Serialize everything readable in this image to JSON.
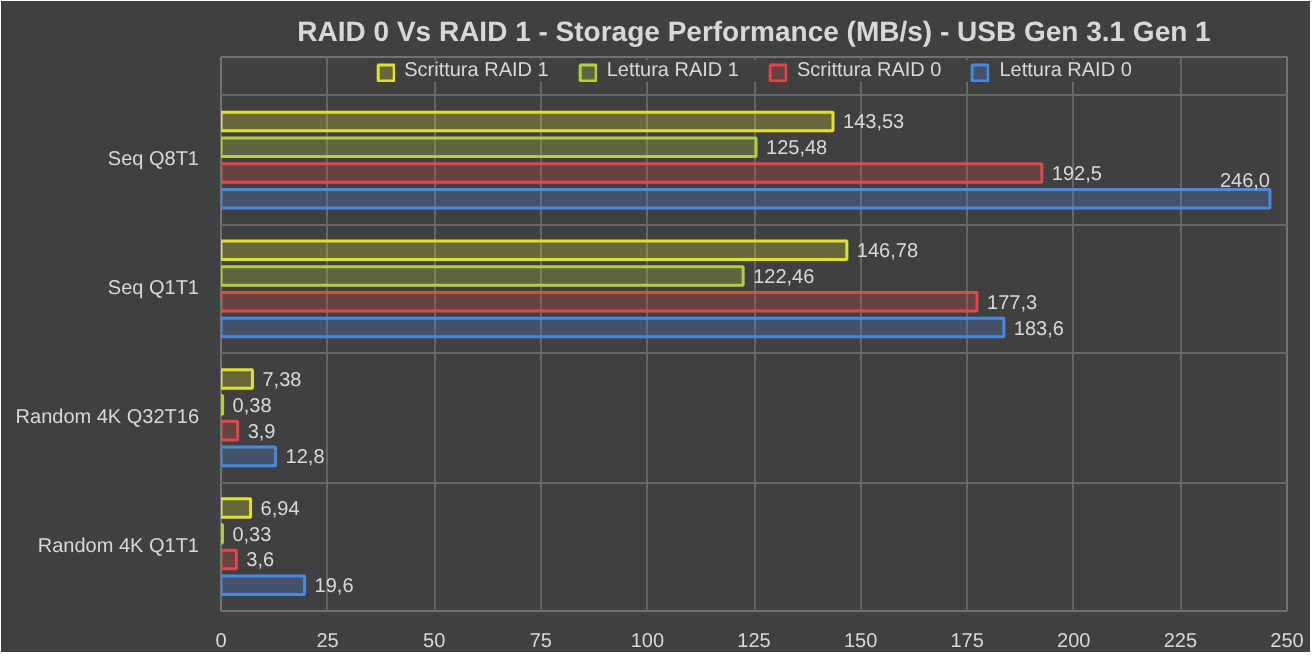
{
  "chart_data": {
    "type": "bar",
    "orientation": "horizontal",
    "title": "RAID 0 Vs RAID 1 - Storage Performance (MB/s) - USB Gen 3.1 Gen 1",
    "categories": [
      "Seq Q8T1",
      "Seq Q1T1",
      "Random 4K Q32T16",
      "Random 4K Q1T1"
    ],
    "series": [
      {
        "name": "Scrittura RAID 1",
        "color": "#e0e030",
        "values": [
          143.53,
          146.78,
          7.38,
          6.94
        ],
        "value_labels": [
          "143,53",
          "146,78",
          "7,38",
          "6,94"
        ]
      },
      {
        "name": "Lettura RAID 1",
        "color": "#b0d040",
        "values": [
          125.48,
          122.46,
          0.38,
          0.33
        ],
        "value_labels": [
          "125,48",
          "122,46",
          "0,38",
          "0,33"
        ]
      },
      {
        "name": "Scrittura RAID 0",
        "color": "#e04848",
        "values": [
          192.5,
          177.3,
          3.9,
          3.6
        ],
        "value_labels": [
          "192,5",
          "177,3",
          "3,9",
          "3,6"
        ]
      },
      {
        "name": "Lettura RAID 0",
        "color": "#4a88e0",
        "values": [
          246.0,
          183.6,
          12.8,
          19.6
        ],
        "value_labels": [
          "246,0",
          "183,6",
          "12,8",
          "19,6"
        ]
      }
    ],
    "xlim": [
      0,
      250
    ],
    "xticks": [
      0,
      25,
      50,
      75,
      100,
      125,
      150,
      175,
      200,
      225,
      250
    ],
    "grid": true,
    "legend": "top"
  }
}
